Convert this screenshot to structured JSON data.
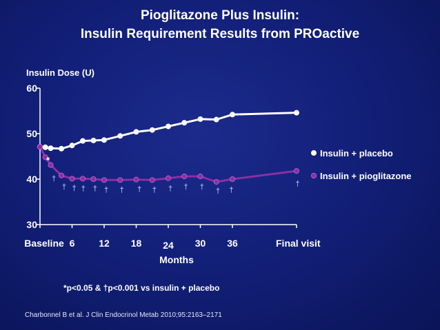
{
  "title_line1": "Pioglitazone Plus Insulin:",
  "title_line2": "Insulin Requirement Results from PROactive",
  "footnote": "*p<0.05 & †p<0.001 vs insulin + placebo",
  "citation": "Charbonnel B et al. J Clin Endocrinol Metab 2010;95:2163–2171",
  "colors": {
    "placebo": "#ffffff",
    "pioglitazone": "#8b2fa3",
    "marker": "#9fb0e8",
    "background": "#13207a"
  },
  "chart_data": {
    "type": "line",
    "title": "Pioglitazone Plus Insulin: Insulin Requirement Results from PROactive",
    "ylabel": "Insulin Dose (U)",
    "xlabel": "Months",
    "ylim": [
      30,
      60
    ],
    "yticks": [
      30,
      40,
      50,
      60
    ],
    "xlim": [
      0,
      48
    ],
    "xticks": [
      {
        "value": 0,
        "label": "Baseline"
      },
      {
        "value": 6,
        "label": "6"
      },
      {
        "value": 12,
        "label": "12"
      },
      {
        "value": 18,
        "label": "18"
      },
      {
        "value": 24,
        "label": "24"
      },
      {
        "value": 30,
        "label": "30"
      },
      {
        "value": 36,
        "label": "36"
      },
      {
        "value": 48,
        "label": "Final visit"
      }
    ],
    "legend": "right",
    "series": [
      {
        "name": "Insulin + placebo",
        "x": [
          0,
          1,
          2,
          4,
          6,
          8,
          10,
          12,
          15,
          18,
          21,
          24,
          27,
          30,
          33,
          36,
          48
        ],
        "values": [
          47.1,
          47.0,
          46.8,
          46.7,
          47.4,
          48.4,
          48.5,
          48.6,
          49.5,
          50.4,
          50.8,
          51.6,
          52.4,
          53.2,
          53.1,
          54.2,
          54.6
        ]
      },
      {
        "name": "Insulin + pioglitazone",
        "x": [
          0,
          1,
          2,
          4,
          6,
          8,
          10,
          12,
          15,
          18,
          21,
          24,
          27,
          30,
          33,
          36,
          48
        ],
        "values": [
          47.1,
          44.8,
          43.1,
          40.8,
          40.1,
          40.1,
          40.0,
          39.8,
          39.8,
          39.9,
          39.8,
          40.2,
          40.6,
          40.6,
          39.4,
          40.0,
          41.8
        ]
      }
    ],
    "significance": [
      {
        "x": 1.5,
        "y": 43.5,
        "symbol": "*"
      },
      {
        "x": 2.6,
        "y": 39.6,
        "symbol": "†"
      },
      {
        "x": 4.5,
        "y": 37.8,
        "symbol": "†"
      },
      {
        "x": 6.4,
        "y": 37.5,
        "symbol": "†"
      },
      {
        "x": 8.1,
        "y": 37.4,
        "symbol": "†"
      },
      {
        "x": 10.3,
        "y": 37.4,
        "symbol": "†"
      },
      {
        "x": 12.4,
        "y": 37.1,
        "symbol": "†"
      },
      {
        "x": 15.3,
        "y": 37.1,
        "symbol": "†"
      },
      {
        "x": 18.6,
        "y": 37.3,
        "symbol": "†"
      },
      {
        "x": 21.4,
        "y": 37.1,
        "symbol": "†"
      },
      {
        "x": 24.4,
        "y": 37.4,
        "symbol": "†"
      },
      {
        "x": 27.3,
        "y": 37.8,
        "symbol": "†"
      },
      {
        "x": 30.3,
        "y": 37.8,
        "symbol": "†"
      },
      {
        "x": 33.3,
        "y": 36.9,
        "symbol": "†"
      },
      {
        "x": 35.8,
        "y": 37.1,
        "symbol": "†"
      },
      {
        "x": 48.2,
        "y": 38.5,
        "symbol": "†"
      }
    ]
  }
}
